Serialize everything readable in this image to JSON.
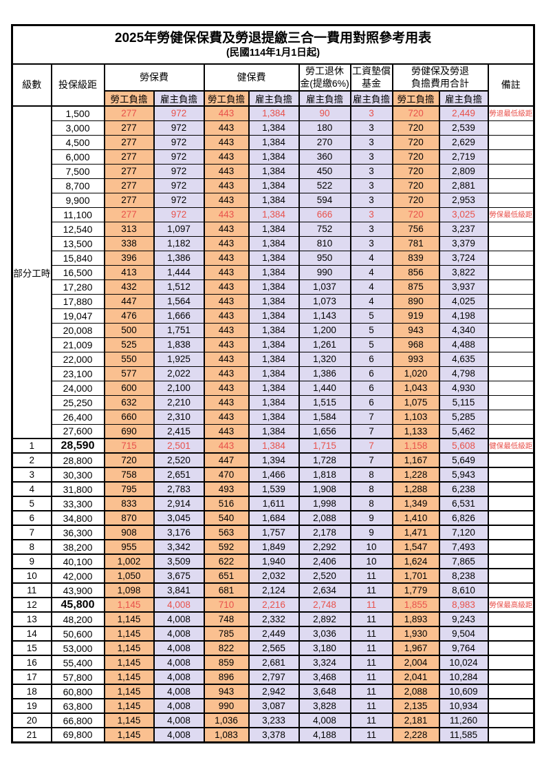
{
  "title": "2025年勞健保保費及勞退提繳三合一費用對照參考用表",
  "subtitle": "(民國114年1月1日起)",
  "columns": {
    "level": "級數",
    "bracket": "投保級距",
    "labor_insurance": "勞保費",
    "health_insurance": "健保費",
    "pension_line1": "勞工退休",
    "pension_line2": "金(提繳6%)",
    "wage_fund_line1": "工資墊償",
    "wage_fund_line2": "基金",
    "total_line1": "勞健保及勞退",
    "total_line2": "負擔費用合計",
    "remark": "備註",
    "employee_label": "勞工負擔",
    "employer_label": "雇主負擔"
  },
  "part_time_label": "部分工時",
  "colors": {
    "employee_bg": "#FAC090",
    "employer_bg": "#DEDAF1",
    "highlight_text": "#E8514B",
    "border": "#000000"
  },
  "chart_data": {
    "type": "table",
    "title": "2025年勞健保保費及勞退提繳三合一費用對照參考用表",
    "columns": [
      "級數",
      "投保級距",
      "勞保費-勞工負擔",
      "勞保費-雇主負擔",
      "健保費-勞工負擔",
      "健保費-雇主負擔",
      "勞工退休金(提繳6%)-雇主負擔",
      "工資墊償基金-雇主負擔",
      "合計-勞工負擔",
      "合計-雇主負擔",
      "備註"
    ]
  },
  "rows": [
    {
      "level": "",
      "bracket": "1,500",
      "values": [
        "277",
        "972",
        "443",
        "1,384",
        "90",
        "3",
        "720",
        "2,449"
      ],
      "remark": "勞退最低級距",
      "highlight": true
    },
    {
      "level": "",
      "bracket": "3,000",
      "values": [
        "277",
        "972",
        "443",
        "1,384",
        "180",
        "3",
        "720",
        "2,539"
      ],
      "remark": "",
      "highlight": false
    },
    {
      "level": "",
      "bracket": "4,500",
      "values": [
        "277",
        "972",
        "443",
        "1,384",
        "270",
        "3",
        "720",
        "2,629"
      ],
      "remark": "",
      "highlight": false
    },
    {
      "level": "",
      "bracket": "6,000",
      "values": [
        "277",
        "972",
        "443",
        "1,384",
        "360",
        "3",
        "720",
        "2,719"
      ],
      "remark": "",
      "highlight": false
    },
    {
      "level": "",
      "bracket": "7,500",
      "values": [
        "277",
        "972",
        "443",
        "1,384",
        "450",
        "3",
        "720",
        "2,809"
      ],
      "remark": "",
      "highlight": false
    },
    {
      "level": "",
      "bracket": "8,700",
      "values": [
        "277",
        "972",
        "443",
        "1,384",
        "522",
        "3",
        "720",
        "2,881"
      ],
      "remark": "",
      "highlight": false
    },
    {
      "level": "",
      "bracket": "9,900",
      "values": [
        "277",
        "972",
        "443",
        "1,384",
        "594",
        "3",
        "720",
        "2,953"
      ],
      "remark": "",
      "highlight": false
    },
    {
      "level": "",
      "bracket": "11,100",
      "values": [
        "277",
        "972",
        "443",
        "1,384",
        "666",
        "3",
        "720",
        "3,025"
      ],
      "remark": "勞保最低級距",
      "highlight": true
    },
    {
      "level": "",
      "bracket": "12,540",
      "values": [
        "313",
        "1,097",
        "443",
        "1,384",
        "752",
        "3",
        "756",
        "3,237"
      ],
      "remark": "",
      "highlight": false
    },
    {
      "level": "",
      "bracket": "13,500",
      "values": [
        "338",
        "1,182",
        "443",
        "1,384",
        "810",
        "3",
        "781",
        "3,379"
      ],
      "remark": "",
      "highlight": false
    },
    {
      "level": "",
      "bracket": "15,840",
      "values": [
        "396",
        "1,386",
        "443",
        "1,384",
        "950",
        "4",
        "839",
        "3,724"
      ],
      "remark": "",
      "highlight": false
    },
    {
      "level": "",
      "bracket": "16,500",
      "values": [
        "413",
        "1,444",
        "443",
        "1,384",
        "990",
        "4",
        "856",
        "3,822"
      ],
      "remark": "",
      "highlight": false
    },
    {
      "level": "",
      "bracket": "17,280",
      "values": [
        "432",
        "1,512",
        "443",
        "1,384",
        "1,037",
        "4",
        "875",
        "3,937"
      ],
      "remark": "",
      "highlight": false
    },
    {
      "level": "",
      "bracket": "17,880",
      "values": [
        "447",
        "1,564",
        "443",
        "1,384",
        "1,073",
        "4",
        "890",
        "4,025"
      ],
      "remark": "",
      "highlight": false
    },
    {
      "level": "",
      "bracket": "19,047",
      "values": [
        "476",
        "1,666",
        "443",
        "1,384",
        "1,143",
        "5",
        "919",
        "4,198"
      ],
      "remark": "",
      "highlight": false
    },
    {
      "level": "",
      "bracket": "20,008",
      "values": [
        "500",
        "1,751",
        "443",
        "1,384",
        "1,200",
        "5",
        "943",
        "4,340"
      ],
      "remark": "",
      "highlight": false
    },
    {
      "level": "",
      "bracket": "21,009",
      "values": [
        "525",
        "1,838",
        "443",
        "1,384",
        "1,261",
        "5",
        "968",
        "4,488"
      ],
      "remark": "",
      "highlight": false
    },
    {
      "level": "",
      "bracket": "22,000",
      "values": [
        "550",
        "1,925",
        "443",
        "1,384",
        "1,320",
        "6",
        "993",
        "4,635"
      ],
      "remark": "",
      "highlight": false
    },
    {
      "level": "",
      "bracket": "23,100",
      "values": [
        "577",
        "2,022",
        "443",
        "1,384",
        "1,386",
        "6",
        "1,020",
        "4,798"
      ],
      "remark": "",
      "highlight": false
    },
    {
      "level": "",
      "bracket": "24,000",
      "values": [
        "600",
        "2,100",
        "443",
        "1,384",
        "1,440",
        "6",
        "1,043",
        "4,930"
      ],
      "remark": "",
      "highlight": false
    },
    {
      "level": "",
      "bracket": "25,250",
      "values": [
        "632",
        "2,210",
        "443",
        "1,384",
        "1,515",
        "6",
        "1,075",
        "5,115"
      ],
      "remark": "",
      "highlight": false
    },
    {
      "level": "",
      "bracket": "26,400",
      "values": [
        "660",
        "2,310",
        "443",
        "1,384",
        "1,584",
        "7",
        "1,103",
        "5,285"
      ],
      "remark": "",
      "highlight": false
    },
    {
      "level": "",
      "bracket": "27,600",
      "values": [
        "690",
        "2,415",
        "443",
        "1,384",
        "1,656",
        "7",
        "1,133",
        "5,462"
      ],
      "remark": "",
      "highlight": false
    },
    {
      "level": "1",
      "bracket": "28,590",
      "values": [
        "715",
        "2,501",
        "443",
        "1,384",
        "1,715",
        "7",
        "1,158",
        "5,608"
      ],
      "remark": "健保最低級距",
      "highlight": true
    },
    {
      "level": "2",
      "bracket": "28,800",
      "values": [
        "720",
        "2,520",
        "447",
        "1,394",
        "1,728",
        "7",
        "1,167",
        "5,649"
      ],
      "remark": "",
      "highlight": false
    },
    {
      "level": "3",
      "bracket": "30,300",
      "values": [
        "758",
        "2,651",
        "470",
        "1,466",
        "1,818",
        "8",
        "1,228",
        "5,943"
      ],
      "remark": "",
      "highlight": false
    },
    {
      "level": "4",
      "bracket": "31,800",
      "values": [
        "795",
        "2,783",
        "493",
        "1,539",
        "1,908",
        "8",
        "1,288",
        "6,238"
      ],
      "remark": "",
      "highlight": false
    },
    {
      "level": "5",
      "bracket": "33,300",
      "values": [
        "833",
        "2,914",
        "516",
        "1,611",
        "1,998",
        "8",
        "1,349",
        "6,531"
      ],
      "remark": "",
      "highlight": false
    },
    {
      "level": "6",
      "bracket": "34,800",
      "values": [
        "870",
        "3,045",
        "540",
        "1,684",
        "2,088",
        "9",
        "1,410",
        "6,826"
      ],
      "remark": "",
      "highlight": false
    },
    {
      "level": "7",
      "bracket": "36,300",
      "values": [
        "908",
        "3,176",
        "563",
        "1,757",
        "2,178",
        "9",
        "1,471",
        "7,120"
      ],
      "remark": "",
      "highlight": false
    },
    {
      "level": "8",
      "bracket": "38,200",
      "values": [
        "955",
        "3,342",
        "592",
        "1,849",
        "2,292",
        "10",
        "1,547",
        "7,493"
      ],
      "remark": "",
      "highlight": false
    },
    {
      "level": "9",
      "bracket": "40,100",
      "values": [
        "1,002",
        "3,509",
        "622",
        "1,940",
        "2,406",
        "10",
        "1,624",
        "7,865"
      ],
      "remark": "",
      "highlight": false
    },
    {
      "level": "10",
      "bracket": "42,000",
      "values": [
        "1,050",
        "3,675",
        "651",
        "2,032",
        "2,520",
        "11",
        "1,701",
        "8,238"
      ],
      "remark": "",
      "highlight": false
    },
    {
      "level": "11",
      "bracket": "43,900",
      "values": [
        "1,098",
        "3,841",
        "681",
        "2,124",
        "2,634",
        "11",
        "1,779",
        "8,610"
      ],
      "remark": "",
      "highlight": false
    },
    {
      "level": "12",
      "bracket": "45,800",
      "values": [
        "1,145",
        "4,008",
        "710",
        "2,216",
        "2,748",
        "11",
        "1,855",
        "8,983"
      ],
      "remark": "勞保最高級距",
      "highlight": true
    },
    {
      "level": "13",
      "bracket": "48,200",
      "values": [
        "1,145",
        "4,008",
        "748",
        "2,332",
        "2,892",
        "11",
        "1,893",
        "9,243"
      ],
      "remark": "",
      "highlight": false
    },
    {
      "level": "14",
      "bracket": "50,600",
      "values": [
        "1,145",
        "4,008",
        "785",
        "2,449",
        "3,036",
        "11",
        "1,930",
        "9,504"
      ],
      "remark": "",
      "highlight": false
    },
    {
      "level": "15",
      "bracket": "53,000",
      "values": [
        "1,145",
        "4,008",
        "822",
        "2,565",
        "3,180",
        "11",
        "1,967",
        "9,764"
      ],
      "remark": "",
      "highlight": false
    },
    {
      "level": "16",
      "bracket": "55,400",
      "values": [
        "1,145",
        "4,008",
        "859",
        "2,681",
        "3,324",
        "11",
        "2,004",
        "10,024"
      ],
      "remark": "",
      "highlight": false
    },
    {
      "level": "17",
      "bracket": "57,800",
      "values": [
        "1,145",
        "4,008",
        "896",
        "2,797",
        "3,468",
        "11",
        "2,041",
        "10,284"
      ],
      "remark": "",
      "highlight": false
    },
    {
      "level": "18",
      "bracket": "60,800",
      "values": [
        "1,145",
        "4,008",
        "943",
        "2,942",
        "3,648",
        "11",
        "2,088",
        "10,609"
      ],
      "remark": "",
      "highlight": false
    },
    {
      "level": "19",
      "bracket": "63,800",
      "values": [
        "1,145",
        "4,008",
        "990",
        "3,087",
        "3,828",
        "11",
        "2,135",
        "10,934"
      ],
      "remark": "",
      "highlight": false
    },
    {
      "level": "20",
      "bracket": "66,800",
      "values": [
        "1,145",
        "4,008",
        "1,036",
        "3,233",
        "4,008",
        "11",
        "2,181",
        "11,260"
      ],
      "remark": "",
      "highlight": false
    },
    {
      "level": "21",
      "bracket": "69,800",
      "values": [
        "1,145",
        "4,008",
        "1,083",
        "3,378",
        "4,188",
        "11",
        "2,228",
        "11,585"
      ],
      "remark": "",
      "highlight": false
    }
  ]
}
